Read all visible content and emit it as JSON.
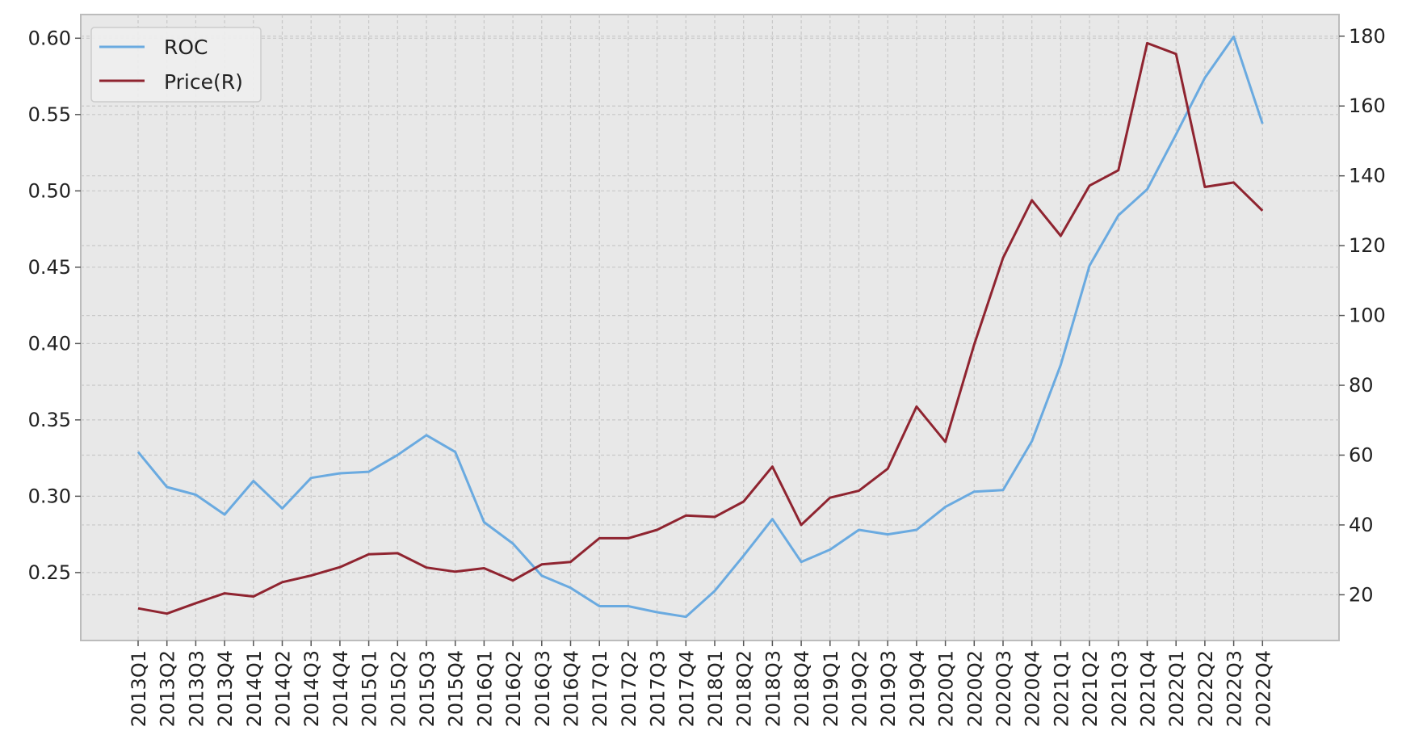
{
  "chart_data": {
    "type": "line",
    "title": "",
    "xlabel": "",
    "ylabel_left": "",
    "ylabel_right": "",
    "grid": true,
    "legend_placement": "top-left",
    "categories": [
      "2013Q1",
      "2013Q2",
      "2013Q3",
      "2013Q4",
      "2014Q1",
      "2014Q2",
      "2014Q3",
      "2014Q4",
      "2015Q1",
      "2015Q2",
      "2015Q3",
      "2015Q4",
      "2016Q1",
      "2016Q2",
      "2016Q3",
      "2016Q4",
      "2017Q1",
      "2017Q2",
      "2017Q3",
      "2017Q4",
      "2018Q1",
      "2018Q2",
      "2018Q3",
      "2018Q4",
      "2019Q1",
      "2019Q2",
      "2019Q3",
      "2019Q4",
      "2020Q1",
      "2020Q2",
      "2020Q3",
      "2020Q4",
      "2021Q1",
      "2021Q2",
      "2021Q3",
      "2021Q4",
      "2022Q1",
      "2022Q2",
      "2022Q3",
      "2022Q4"
    ],
    "left_axis": {
      "ylim": [
        0.2055,
        0.6155
      ],
      "ticks": [
        0.25,
        0.3,
        0.35,
        0.4,
        0.45,
        0.5,
        0.55,
        0.6
      ],
      "tick_labels": [
        "0.25",
        "0.30",
        "0.35",
        "0.40",
        "0.45",
        "0.50",
        "0.55",
        "0.60"
      ]
    },
    "right_axis": {
      "ylim": [
        6.9,
        186.2
      ],
      "ticks": [
        20,
        40,
        60,
        80,
        100,
        120,
        140,
        160,
        180
      ],
      "tick_labels": [
        "20",
        "40",
        "60",
        "80",
        "100",
        "120",
        "140",
        "160",
        "180"
      ]
    },
    "series": [
      {
        "name": "ROC",
        "axis": "left",
        "color": "#6aaae0",
        "values": [
          0.329,
          0.306,
          0.301,
          0.288,
          0.31,
          0.292,
          0.312,
          0.315,
          0.316,
          0.327,
          0.34,
          0.329,
          0.283,
          0.269,
          0.248,
          0.24,
          0.228,
          0.228,
          0.224,
          0.221,
          0.238,
          0.261,
          0.285,
          0.257,
          0.265,
          0.278,
          0.275,
          0.278,
          0.293,
          0.303,
          0.304,
          0.336,
          0.386,
          0.451,
          0.484,
          0.501,
          0.537,
          0.574,
          0.601,
          0.544
        ]
      },
      {
        "name": "Price(R)",
        "axis": "right",
        "color": "#8f2430",
        "values": [
          16.1,
          14.6,
          17.6,
          20.4,
          19.5,
          23.6,
          25.5,
          27.9,
          31.6,
          31.9,
          27.8,
          26.6,
          27.6,
          24.1,
          28.7,
          29.4,
          36.2,
          36.2,
          38.6,
          42.7,
          42.3,
          46.7,
          56.7,
          40.0,
          47.8,
          49.8,
          56.1,
          73.9,
          63.8,
          91.7,
          116.5,
          133.0,
          122.8,
          137.2,
          141.6,
          178.0,
          174.9,
          136.8,
          138.1,
          130.0
        ]
      }
    ]
  }
}
